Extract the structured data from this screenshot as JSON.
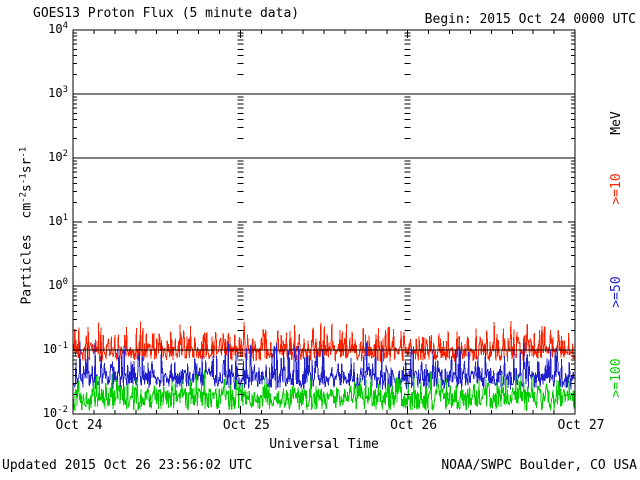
{
  "title": "GOES13 Proton Flux (5 minute data)",
  "begin_label": "Begin: 2015 Oct 24 0000 UTC",
  "footer": {
    "updated": "Updated 2015 Oct 26 23:56:02 UTC",
    "source": "NOAA/SWPC Boulder, CO USA"
  },
  "chart_data": {
    "type": "line",
    "title": "GOES13 Proton Flux (5 minute data)",
    "xlabel": "Universal Time",
    "ylabel_parts": [
      {
        "t": "Particles  cm"
      },
      {
        "sup": "-2"
      },
      {
        "t": "s"
      },
      {
        "sup": "-1"
      },
      {
        "t": "sr"
      },
      {
        "sup": "-1"
      }
    ],
    "unit_label": "MeV",
    "x_tick_labels": [
      "Oct 24",
      "Oct 25",
      "Oct 26",
      "Oct 27"
    ],
    "x_range_days": 3,
    "minor_tick_hours": 3,
    "y_ticks": [
      {
        "base": "10",
        "exp": "4"
      },
      {
        "base": "10",
        "exp": "3"
      },
      {
        "base": "10",
        "exp": "2"
      },
      {
        "base": "10",
        "exp": "1"
      },
      {
        "base": "10",
        "exp": "0"
      },
      {
        "base": "10",
        "exp": "-1"
      },
      {
        "base": "10",
        "exp": "-2"
      }
    ],
    "ylim_log10": [
      -2,
      4
    ],
    "grid_hlines": [
      {
        "log10": 3,
        "style": "solid"
      },
      {
        "log10": 2,
        "style": "solid"
      },
      {
        "log10": 1,
        "style": "dashed"
      },
      {
        "log10": 0,
        "style": "solid"
      },
      {
        "log10": -1,
        "style": "solid"
      }
    ],
    "legend_position": "right",
    "series": [
      {
        "name": ">=10",
        "color": "#ff2200",
        "threshold_mev": 10,
        "samples_per_day": 288,
        "typical_flux": 0.1,
        "approx_flux_range": [
          0.066,
          0.31
        ],
        "log10_base": -1.18,
        "log10_lin": 0.22,
        "log10_spike": 0.45,
        "spike_pow": 4
      },
      {
        "name": ">=50",
        "color": "#2020cc",
        "threshold_mev": 50,
        "samples_per_day": 288,
        "typical_flux": 0.04,
        "approx_flux_range": [
          0.024,
          0.15
        ],
        "log10_base": -1.62,
        "log10_lin": 0.3,
        "log10_spike": 0.5,
        "spike_pow": 6
      },
      {
        "name": ">=100",
        "color": "#00cc00",
        "threshold_mev": 100,
        "samples_per_day": 288,
        "typical_flux": 0.021,
        "approx_flux_range": [
          0.011,
          0.05
        ],
        "log10_base": -1.95,
        "log10_lin": 0.35,
        "log10_spike": 0.3,
        "spike_pow": 5
      }
    ],
    "noise_seed": 20151024
  }
}
